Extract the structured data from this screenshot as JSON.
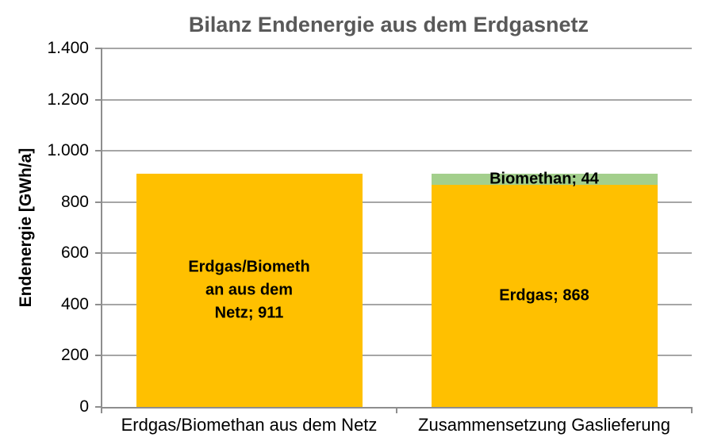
{
  "chart_data": {
    "type": "bar",
    "stacked": true,
    "title": "Bilanz Endenergie aus dem Erdgasnetz",
    "ylabel": "Endenergie [GWh/a]",
    "ylim": [
      0,
      1400
    ],
    "ytick_step": 200,
    "ytick_labels": [
      "0",
      "200",
      "400",
      "600",
      "800",
      "1.000",
      "1.200",
      "1.400"
    ],
    "grid": "horizontal",
    "legend": "none",
    "categories": [
      "Erdgas/Biomethan aus dem Netz",
      "Zusammensetzung Gaslieferung"
    ],
    "bars": [
      {
        "category": "Erdgas/Biomethan aus dem Netz",
        "total": 911,
        "segments": [
          {
            "name": "Erdgas/Biomethan aus dem Netz",
            "value": 911,
            "color": "#FFC000",
            "label_lines": [
              "Erdgas/Biometh",
              "an aus dem",
              "Netz; 911"
            ]
          }
        ]
      },
      {
        "category": "Zusammensetzung Gaslieferung",
        "total": 912,
        "segments": [
          {
            "name": "Erdgas",
            "value": 868,
            "color": "#FFC000",
            "label_lines": [
              "Erdgas; 868"
            ]
          },
          {
            "name": "Biomethan",
            "value": 44,
            "color": "#A3CF8C",
            "label_lines": [
              "Biomethan; 44"
            ]
          }
        ]
      }
    ],
    "colors": {
      "title": "#595959",
      "axis": "#8E8E8E",
      "gridline": "#A6A6A6",
      "label_text": "#000000",
      "background": "#FFFFFF"
    }
  }
}
